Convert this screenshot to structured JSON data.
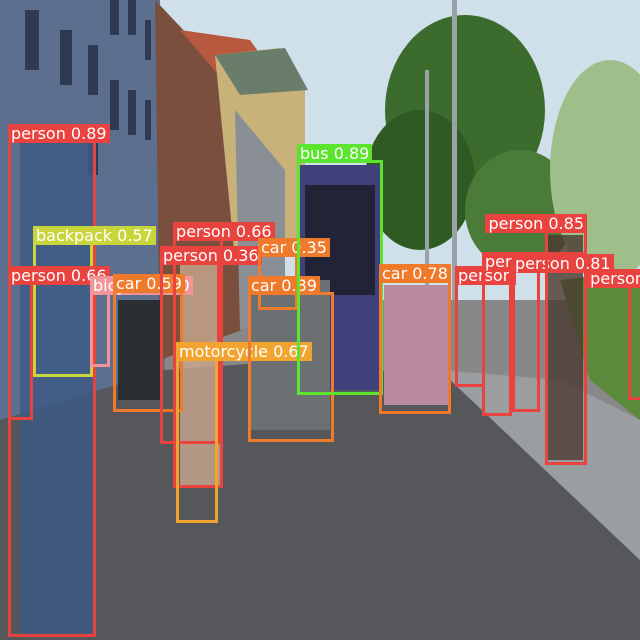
{
  "colors": {
    "person": "#e8433f",
    "car": "#f07a2c",
    "bus": "#5be52e",
    "backpack": "#c8d63b",
    "bicycle": "#f2959a",
    "motorcycle": "#f2a430"
  },
  "detections": [
    {
      "cls": "person",
      "text": "person 0.89"
    },
    {
      "cls": "backpack",
      "text": "backpack 0.57"
    },
    {
      "cls": "person",
      "text": "person 0.66"
    },
    {
      "cls": "bicycle",
      "text": "bicycle 0.50"
    },
    {
      "cls": "car",
      "text": "car 0.59"
    },
    {
      "cls": "person",
      "text": "person 0.66"
    },
    {
      "cls": "person",
      "text": "person 0.36"
    },
    {
      "cls": "motorcycle",
      "text": "motorcycle 0.67"
    },
    {
      "cls": "car",
      "text": "car 0.35"
    },
    {
      "cls": "car",
      "text": "car 0.89"
    },
    {
      "cls": "bus",
      "text": "bus 0.89"
    },
    {
      "cls": "car",
      "text": "car 0.78"
    },
    {
      "cls": "person",
      "text": "person"
    },
    {
      "cls": "person",
      "text": "person 0.82"
    },
    {
      "cls": "person",
      "text": "person 0.81"
    },
    {
      "cls": "person",
      "text": "person 0.85"
    },
    {
      "cls": "person",
      "text": "person"
    }
  ]
}
